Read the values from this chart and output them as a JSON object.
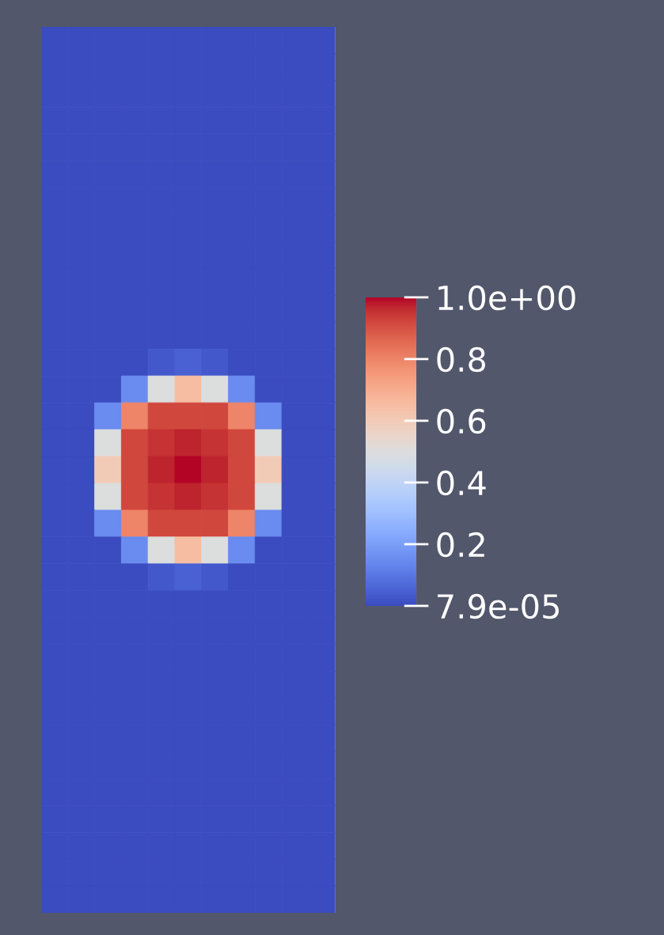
{
  "chart_data": {
    "type": "heatmap",
    "categories": [
      null,
      null,
      null,
      null,
      null,
      null,
      null,
      null,
      null,
      null,
      null
    ],
    "y_categories": [
      null,
      null,
      null,
      null,
      null,
      null,
      null,
      null,
      null,
      null,
      null,
      null,
      null,
      null,
      null,
      null,
      null,
      null,
      null,
      null,
      null,
      null,
      null,
      null,
      null,
      null,
      null,
      null,
      null,
      null,
      null,
      null,
      null
    ],
    "clim": [
      7.9e-05,
      1.0
    ],
    "cticks": [
      {
        "value": 1.0,
        "label": "1.0e+00"
      },
      0.8,
      0.6,
      0.4,
      0.2,
      {
        "value": 7.9e-05,
        "label": "7.9e-05"
      }
    ],
    "cells": [
      [
        7.9e-05,
        7.9e-05,
        7.9e-05,
        7.9e-05,
        7.9e-05,
        7.9e-05,
        7.9e-05,
        7.9e-05,
        7.9e-05,
        7.9e-05,
        7.9e-05
      ],
      [
        7.9e-05,
        7.9e-05,
        7.9e-05,
        7.9e-05,
        7.9e-05,
        7.9e-05,
        7.9e-05,
        7.9e-05,
        7.9e-05,
        7.9e-05,
        7.9e-05
      ],
      [
        7.9e-05,
        7.9e-05,
        7.9e-05,
        7.9e-05,
        7.9e-05,
        7.9e-05,
        7.9e-05,
        7.9e-05,
        7.9e-05,
        7.9e-05,
        7.9e-05
      ],
      [
        7.9e-05,
        7.9e-05,
        7.9e-05,
        7.9e-05,
        7.9e-05,
        7.9e-05,
        7.9e-05,
        7.9e-05,
        7.9e-05,
        7.9e-05,
        7.9e-05
      ],
      [
        7.9e-05,
        7.9e-05,
        7.9e-05,
        7.9e-05,
        7.9e-05,
        7.9e-05,
        7.9e-05,
        7.9e-05,
        7.9e-05,
        7.9e-05,
        7.9e-05
      ],
      [
        7.9e-05,
        7.9e-05,
        7.9e-05,
        7.9e-05,
        7.9e-05,
        7.9e-05,
        7.9e-05,
        7.9e-05,
        7.9e-05,
        7.9e-05,
        7.9e-05
      ],
      [
        7.9e-05,
        7.9e-05,
        7.9e-05,
        7.9e-05,
        7.9e-05,
        7.9e-05,
        7.9e-05,
        7.9e-05,
        7.9e-05,
        7.9e-05,
        7.9e-05
      ],
      [
        7.9e-05,
        7.9e-05,
        7.9e-05,
        7.9e-05,
        7.9e-05,
        7.9e-05,
        7.9e-05,
        7.9e-05,
        7.9e-05,
        7.9e-05,
        7.9e-05
      ],
      [
        7.9e-05,
        7.9e-05,
        7.9e-05,
        7.9e-05,
        7.9e-05,
        7.9e-05,
        7.9e-05,
        7.9e-05,
        7.9e-05,
        7.9e-05,
        7.9e-05
      ],
      [
        7.9e-05,
        7.9e-05,
        7.9e-05,
        7.9e-05,
        7.9e-05,
        7.9e-05,
        7.9e-05,
        7.9e-05,
        7.9e-05,
        7.9e-05,
        7.9e-05
      ],
      [
        7.9e-05,
        7.9e-05,
        7.9e-05,
        7.9e-05,
        7.9e-05,
        7.9e-05,
        7.9e-05,
        7.9e-05,
        7.9e-05,
        7.9e-05,
        7.9e-05
      ],
      [
        7.9e-05,
        7.9e-05,
        7.9e-05,
        7.9e-05,
        7.9e-05,
        7.9e-05,
        7.9e-05,
        7.9e-05,
        7.9e-05,
        7.9e-05,
        7.9e-05
      ],
      [
        7.9e-05,
        7.9e-05,
        7.9e-05,
        7.9e-05,
        0.03,
        0.05,
        0.03,
        7.9e-05,
        7.9e-05,
        7.9e-05,
        7.9e-05
      ],
      [
        7.9e-05,
        7.9e-05,
        7.9e-05,
        0.15,
        0.5,
        0.65,
        0.5,
        0.15,
        7.9e-05,
        7.9e-05,
        7.9e-05
      ],
      [
        7.9e-05,
        7.9e-05,
        0.15,
        0.8,
        0.92,
        0.92,
        0.92,
        0.8,
        0.15,
        7.9e-05,
        7.9e-05
      ],
      [
        7.9e-05,
        7.9e-05,
        0.5,
        0.92,
        0.95,
        0.97,
        0.95,
        0.92,
        0.5,
        7.9e-05,
        7.9e-05
      ],
      [
        7.9e-05,
        7.9e-05,
        0.6,
        0.92,
        0.97,
        1.0,
        0.97,
        0.92,
        0.6,
        7.9e-05,
        7.9e-05
      ],
      [
        7.9e-05,
        7.9e-05,
        0.5,
        0.92,
        0.95,
        0.97,
        0.95,
        0.92,
        0.5,
        7.9e-05,
        7.9e-05
      ],
      [
        7.9e-05,
        7.9e-05,
        0.15,
        0.8,
        0.92,
        0.92,
        0.92,
        0.8,
        0.15,
        7.9e-05,
        7.9e-05
      ],
      [
        7.9e-05,
        7.9e-05,
        7.9e-05,
        0.15,
        0.5,
        0.65,
        0.5,
        0.15,
        7.9e-05,
        7.9e-05,
        7.9e-05
      ],
      [
        7.9e-05,
        7.9e-05,
        7.9e-05,
        7.9e-05,
        0.03,
        0.05,
        0.03,
        7.9e-05,
        7.9e-05,
        7.9e-05,
        7.9e-05
      ],
      [
        7.9e-05,
        7.9e-05,
        7.9e-05,
        7.9e-05,
        7.9e-05,
        7.9e-05,
        7.9e-05,
        7.9e-05,
        7.9e-05,
        7.9e-05,
        7.9e-05
      ],
      [
        7.9e-05,
        7.9e-05,
        7.9e-05,
        7.9e-05,
        7.9e-05,
        7.9e-05,
        7.9e-05,
        7.9e-05,
        7.9e-05,
        7.9e-05,
        7.9e-05
      ],
      [
        7.9e-05,
        7.9e-05,
        7.9e-05,
        7.9e-05,
        7.9e-05,
        7.9e-05,
        7.9e-05,
        7.9e-05,
        7.9e-05,
        7.9e-05,
        7.9e-05
      ],
      [
        7.9e-05,
        7.9e-05,
        7.9e-05,
        7.9e-05,
        7.9e-05,
        7.9e-05,
        7.9e-05,
        7.9e-05,
        7.9e-05,
        7.9e-05,
        7.9e-05
      ],
      [
        7.9e-05,
        7.9e-05,
        7.9e-05,
        7.9e-05,
        7.9e-05,
        7.9e-05,
        7.9e-05,
        7.9e-05,
        7.9e-05,
        7.9e-05,
        7.9e-05
      ],
      [
        7.9e-05,
        7.9e-05,
        7.9e-05,
        7.9e-05,
        7.9e-05,
        7.9e-05,
        7.9e-05,
        7.9e-05,
        7.9e-05,
        7.9e-05,
        7.9e-05
      ],
      [
        7.9e-05,
        7.9e-05,
        7.9e-05,
        7.9e-05,
        7.9e-05,
        7.9e-05,
        7.9e-05,
        7.9e-05,
        7.9e-05,
        7.9e-05,
        7.9e-05
      ],
      [
        7.9e-05,
        7.9e-05,
        7.9e-05,
        7.9e-05,
        7.9e-05,
        7.9e-05,
        7.9e-05,
        7.9e-05,
        7.9e-05,
        7.9e-05,
        7.9e-05
      ],
      [
        7.9e-05,
        7.9e-05,
        7.9e-05,
        7.9e-05,
        7.9e-05,
        7.9e-05,
        7.9e-05,
        7.9e-05,
        7.9e-05,
        7.9e-05,
        7.9e-05
      ],
      [
        7.9e-05,
        7.9e-05,
        7.9e-05,
        7.9e-05,
        7.9e-05,
        7.9e-05,
        7.9e-05,
        7.9e-05,
        7.9e-05,
        7.9e-05,
        7.9e-05
      ],
      [
        7.9e-05,
        7.9e-05,
        7.9e-05,
        7.9e-05,
        7.9e-05,
        7.9e-05,
        7.9e-05,
        7.9e-05,
        7.9e-05,
        7.9e-05,
        7.9e-05
      ],
      [
        7.9e-05,
        7.9e-05,
        7.9e-05,
        7.9e-05,
        7.9e-05,
        7.9e-05,
        7.9e-05,
        7.9e-05,
        7.9e-05,
        7.9e-05,
        7.9e-05
      ]
    ]
  }
}
